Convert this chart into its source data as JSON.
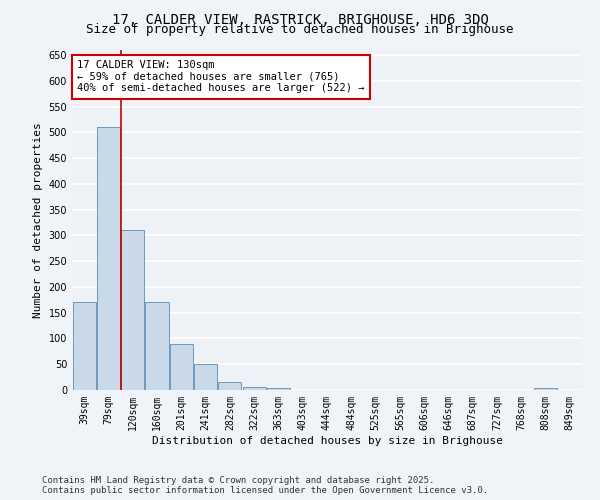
{
  "title_line1": "17, CALDER VIEW, RASTRICK, BRIGHOUSE, HD6 3DQ",
  "title_line2": "Size of property relative to detached houses in Brighouse",
  "xlabel": "Distribution of detached houses by size in Brighouse",
  "ylabel": "Number of detached properties",
  "bins": [
    "39sqm",
    "79sqm",
    "120sqm",
    "160sqm",
    "201sqm",
    "241sqm",
    "282sqm",
    "322sqm",
    "363sqm",
    "403sqm",
    "444sqm",
    "484sqm",
    "525sqm",
    "565sqm",
    "606sqm",
    "646sqm",
    "687sqm",
    "727sqm",
    "768sqm",
    "808sqm",
    "849sqm"
  ],
  "values": [
    170,
    510,
    310,
    170,
    90,
    50,
    15,
    5,
    3,
    0,
    0,
    0,
    0,
    0,
    0,
    0,
    0,
    0,
    0,
    3,
    0
  ],
  "bar_color": "#c9d9e8",
  "bar_edge_color": "#5a8db5",
  "vline_color": "#cc0000",
  "annotation_text": "17 CALDER VIEW: 130sqm\n← 59% of detached houses are smaller (765)\n40% of semi-detached houses are larger (522) →",
  "annotation_box_color": "#ffffff",
  "annotation_box_edge": "#cc0000",
  "ylim": [
    0,
    660
  ],
  "yticks": [
    0,
    50,
    100,
    150,
    200,
    250,
    300,
    350,
    400,
    450,
    500,
    550,
    600,
    650
  ],
  "background_color": "#eef2f7",
  "grid_color": "#ffffff",
  "footer_line1": "Contains HM Land Registry data © Crown copyright and database right 2025.",
  "footer_line2": "Contains public sector information licensed under the Open Government Licence v3.0.",
  "title_fontsize": 10,
  "subtitle_fontsize": 9,
  "axis_label_fontsize": 8,
  "tick_fontsize": 7,
  "annotation_fontsize": 7.5,
  "footer_fontsize": 6.5
}
